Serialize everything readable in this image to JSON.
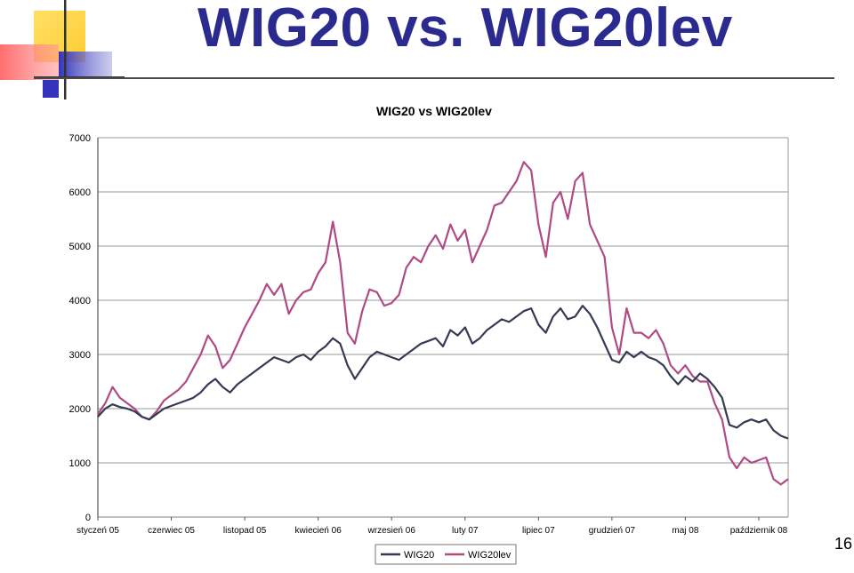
{
  "slide": {
    "title": "WIG20 vs. WIG20lev",
    "page_number": "16"
  },
  "colors": {
    "title": "#2b2a8f",
    "wig20": "#353a53",
    "wig20lev": "#b04a84",
    "grid": "#9a9a9a"
  },
  "chart_data": {
    "type": "line",
    "title": "WIG20 vs WIG20lev",
    "xlabel": "",
    "ylabel": "",
    "ylim": [
      0,
      7000
    ],
    "yticks": [
      0,
      1000,
      2000,
      3000,
      4000,
      5000,
      6000,
      7000
    ],
    "xticks": [
      "styczeń 05",
      "czerwiec 05",
      "listopad 05",
      "kwiecień 06",
      "wrzesień 06",
      "luty 07",
      "lipiec 07",
      "grudzień 07",
      "maj 08",
      "październik 08"
    ],
    "grid": true,
    "legend": "bottom",
    "x_unit": "months since styczeń 05",
    "series": [
      {
        "name": "WIG20",
        "x": [
          0,
          0.5,
          1,
          1.5,
          2,
          2.5,
          3,
          3.5,
          4,
          4.5,
          5,
          5.5,
          6,
          6.5,
          7,
          7.5,
          8,
          8.5,
          9,
          9.5,
          10,
          10.5,
          11,
          11.5,
          12,
          12.5,
          13,
          13.5,
          14,
          14.5,
          15,
          15.5,
          16,
          16.5,
          17,
          17.5,
          18,
          18.5,
          19,
          19.5,
          20,
          20.5,
          21,
          21.5,
          22,
          22.5,
          23,
          23.5,
          24,
          24.5,
          25,
          25.5,
          26,
          26.5,
          27,
          27.5,
          28,
          28.5,
          29,
          29.5,
          30,
          30.5,
          31,
          31.5,
          32,
          32.5,
          33,
          33.5,
          34,
          34.5,
          35,
          35.5,
          36,
          36.5,
          37,
          37.5,
          38,
          38.5,
          39,
          39.5,
          40,
          40.5,
          41,
          41.5,
          42,
          42.5,
          43,
          43.5,
          44,
          44.5,
          45,
          45.5,
          46,
          46.5,
          47
        ],
        "values": [
          1850,
          2000,
          2080,
          2030,
          2000,
          1950,
          1850,
          1800,
          1900,
          2000,
          2050,
          2100,
          2150,
          2200,
          2300,
          2450,
          2550,
          2400,
          2300,
          2450,
          2550,
          2650,
          2750,
          2850,
          2950,
          2900,
          2850,
          2950,
          3000,
          2900,
          3050,
          3150,
          3300,
          3200,
          2800,
          2550,
          2750,
          2950,
          3050,
          3000,
          2950,
          2900,
          3000,
          3100,
          3200,
          3250,
          3300,
          3150,
          3450,
          3350,
          3500,
          3200,
          3300,
          3450,
          3550,
          3650,
          3600,
          3700,
          3800,
          3850,
          3550,
          3400,
          3700,
          3850,
          3650,
          3700,
          3900,
          3750,
          3500,
          3200,
          2900,
          2850,
          3050,
          2950,
          3050,
          2950,
          2900,
          2800,
          2600,
          2450,
          2600,
          2500,
          2650,
          2550,
          2400,
          2200,
          1700,
          1650,
          1750,
          1800,
          1750,
          1800,
          1600,
          1500,
          1450
        ]
      },
      {
        "name": "WIG20lev",
        "x": [
          0,
          0.5,
          1,
          1.5,
          2,
          2.5,
          3,
          3.5,
          4,
          4.5,
          5,
          5.5,
          6,
          6.5,
          7,
          7.5,
          8,
          8.5,
          9,
          9.5,
          10,
          10.5,
          11,
          11.5,
          12,
          12.5,
          13,
          13.5,
          14,
          14.5,
          15,
          15.5,
          16,
          16.5,
          17,
          17.5,
          18,
          18.5,
          19,
          19.5,
          20,
          20.5,
          21,
          21.5,
          22,
          22.5,
          23,
          23.5,
          24,
          24.5,
          25,
          25.5,
          26,
          26.5,
          27,
          27.5,
          28,
          28.5,
          29,
          29.5,
          30,
          30.5,
          31,
          31.5,
          32,
          32.5,
          33,
          33.5,
          34,
          34.5,
          35,
          35.5,
          36,
          36.5,
          37,
          37.5,
          38,
          38.5,
          39,
          39.5,
          40,
          40.5,
          41,
          41.5,
          42,
          42.5,
          43,
          43.5,
          44,
          44.5,
          45,
          45.5,
          46,
          46.5,
          47
        ],
        "values": [
          1900,
          2100,
          2400,
          2200,
          2100,
          2000,
          1850,
          1800,
          1950,
          2150,
          2250,
          2350,
          2500,
          2750,
          3000,
          3350,
          3150,
          2750,
          2900,
          3200,
          3500,
          3750,
          4000,
          4300,
          4100,
          4300,
          3750,
          4000,
          4150,
          4200,
          4500,
          4700,
          5450,
          4700,
          3400,
          3200,
          3800,
          4200,
          4150,
          3900,
          3950,
          4100,
          4600,
          4800,
          4700,
          5000,
          5200,
          4950,
          5400,
          5100,
          5300,
          4700,
          5000,
          5300,
          5750,
          5800,
          6000,
          6200,
          6550,
          6400,
          5400,
          4800,
          5800,
          6000,
          5500,
          6200,
          6350,
          5400,
          5100,
          4800,
          3500,
          3000,
          3850,
          3400,
          3400,
          3300,
          3450,
          3200,
          2800,
          2650,
          2800,
          2600,
          2500,
          2500,
          2100,
          1800,
          1100,
          900,
          1100,
          1000,
          1050,
          1100,
          700,
          600,
          700
        ]
      }
    ]
  }
}
